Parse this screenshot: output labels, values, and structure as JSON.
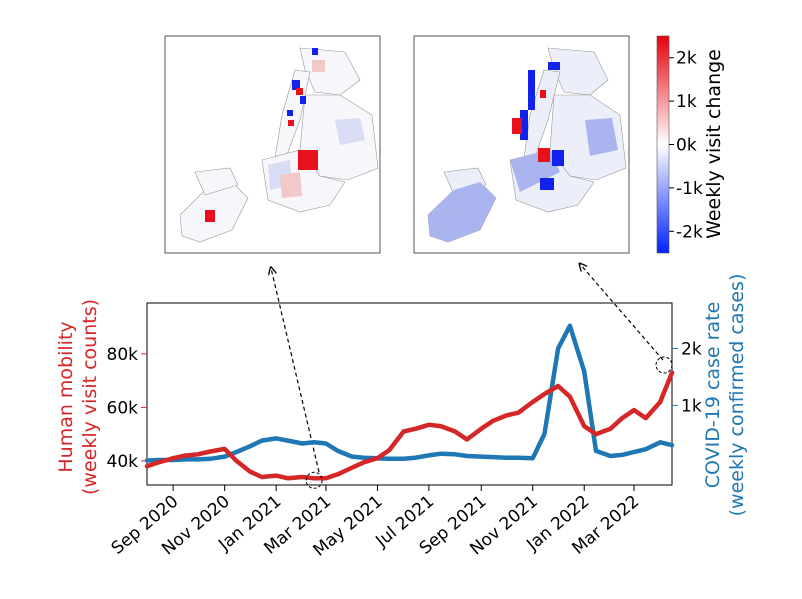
{
  "chart_data": {
    "type": "line",
    "x": [
      "2020-08-01",
      "2020-08-15",
      "2020-09-01",
      "2020-09-15",
      "2020-10-01",
      "2020-10-15",
      "2020-11-01",
      "2020-11-15",
      "2020-12-01",
      "2020-12-15",
      "2021-01-01",
      "2021-01-15",
      "2021-02-01",
      "2021-02-15",
      "2021-03-01",
      "2021-03-15",
      "2021-04-01",
      "2021-04-15",
      "2021-05-01",
      "2021-05-15",
      "2021-06-01",
      "2021-06-15",
      "2021-07-01",
      "2021-07-15",
      "2021-08-01",
      "2021-08-15",
      "2021-09-01",
      "2021-09-15",
      "2021-10-01",
      "2021-10-15",
      "2021-11-01",
      "2021-11-15",
      "2021-12-01",
      "2021-12-15",
      "2022-01-01",
      "2022-01-15",
      "2022-02-01",
      "2022-02-15",
      "2022-03-01",
      "2022-03-15",
      "2022-04-01",
      "2022-04-15"
    ],
    "series": [
      {
        "name": "",
        "axis": "left",
        "color": "#d62728",
        "values": [
          38000,
          39500,
          41000,
          42000,
          42500,
          43500,
          44500,
          40000,
          36000,
          34000,
          34500,
          33500,
          34000,
          33500,
          33500,
          35000,
          37500,
          39500,
          41000,
          44000,
          51000,
          52000,
          53500,
          53000,
          51000,
          48000,
          52000,
          55000,
          57000,
          58000,
          62000,
          65000,
          68000,
          64000,
          53000,
          50000,
          52000,
          56000,
          59000,
          56000,
          62000,
          73000
        ]
      },
      {
        "name": "",
        "axis": "right",
        "color": "#1f77b4",
        "values": [
          30,
          40,
          40,
          50,
          50,
          60,
          100,
          180,
          280,
          380,
          420,
          380,
          330,
          350,
          330,
          200,
          100,
          80,
          70,
          60,
          60,
          80,
          120,
          150,
          140,
          110,
          100,
          90,
          80,
          80,
          70,
          500,
          2000,
          2400,
          1600,
          200,
          110,
          130,
          180,
          230,
          350,
          300
        ]
      }
    ],
    "xticks": [
      "Sep 2020",
      "Nov 2020",
      "Jan 2021",
      "Mar 2021",
      "May 2021",
      "Jul 2021",
      "Sep 2021",
      "Nov 2021",
      "Jan 2022",
      "Mar 2022"
    ],
    "xtick_dates": [
      "2020-09-01",
      "2020-11-01",
      "2021-01-01",
      "2021-03-01",
      "2021-05-01",
      "2021-07-01",
      "2021-09-01",
      "2021-11-01",
      "2022-01-01",
      "2022-03-01"
    ],
    "y_left": {
      "label": [
        "Human mobility",
        "(weekly visit counts)"
      ],
      "ticks": [
        40000,
        60000,
        80000
      ],
      "tick_labels": [
        "40k",
        "60k",
        "80k"
      ],
      "lim": [
        31000,
        99000
      ],
      "color": "#d62728"
    },
    "y_right": {
      "label": [
        "COVID-19 case rate",
        "(weekly confirmed cases)"
      ],
      "ticks": [
        1000,
        2000
      ],
      "tick_labels": [
        "1k",
        "2k"
      ],
      "lim": [
        -400,
        2800
      ],
      "color": "#1f77b4"
    },
    "colorbar": {
      "label": "Weekly visit change",
      "tick_labels": [
        "2k",
        "1k",
        "0k",
        "-1k",
        "-2k"
      ],
      "range": [
        -2500,
        2500
      ]
    },
    "grid": false,
    "legend": "none",
    "highlights": [
      "2021-02-15",
      "2022-04-15"
    ]
  }
}
